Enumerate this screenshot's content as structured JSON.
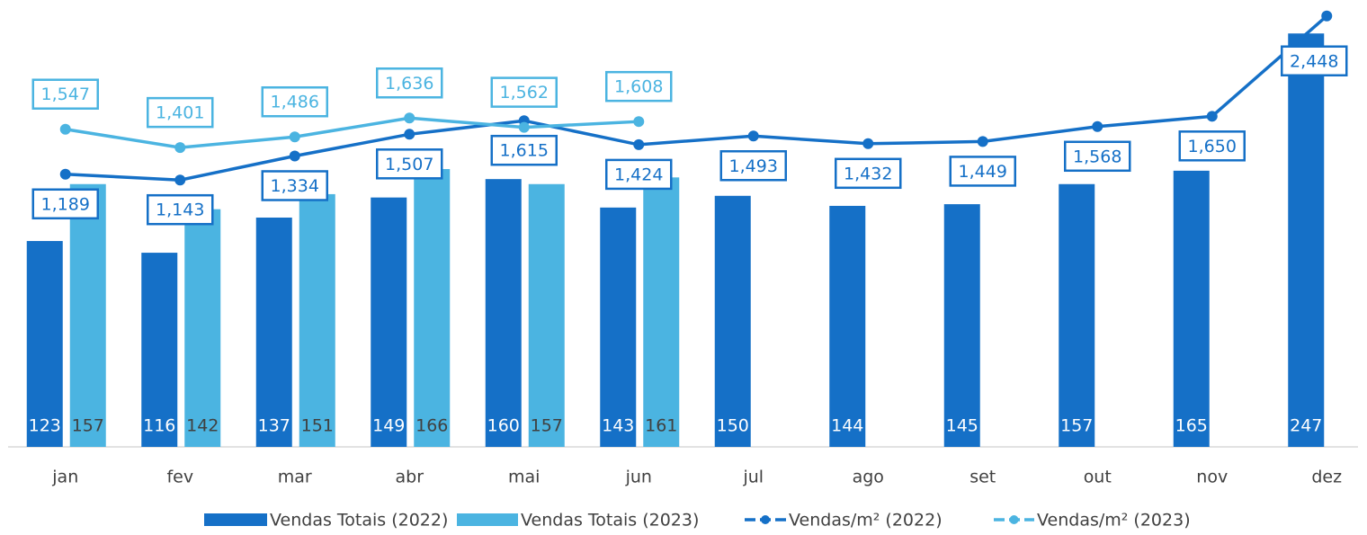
{
  "chart_data": {
    "type": "bar_line",
    "categories": [
      "jan",
      "fev",
      "mar",
      "abr",
      "mai",
      "jun",
      "jul",
      "ago",
      "set",
      "out",
      "nov",
      "dez"
    ],
    "ylim": [
      0,
      267
    ],
    "y2lim": [
      -980,
      2575
    ],
    "series": [
      {
        "name": "Vendas Totais (2022)",
        "type": "bar",
        "color": "#1570c7",
        "values": [
          123,
          116,
          137,
          149,
          160,
          143,
          150,
          144,
          145,
          157,
          165,
          247
        ]
      },
      {
        "name": "Vendas Totais (2023)",
        "type": "bar",
        "color": "#4bb4e1",
        "values": [
          157,
          142,
          151,
          166,
          157,
          161,
          null,
          null,
          null,
          null,
          null,
          null
        ]
      },
      {
        "name": "Vendas/m² (2022)",
        "type": "line",
        "axis": "y2",
        "color": "#1570c7",
        "values": [
          1189,
          1143,
          1334,
          1507,
          1615,
          1424,
          1493,
          1432,
          1449,
          1568,
          1650,
          2448
        ],
        "value_labels": [
          "1,189",
          "1,143",
          "1,334",
          "1,507",
          "1,615",
          "1,424",
          "1,493",
          "1,432",
          "1,449",
          "1,568",
          "1,650",
          "2,448"
        ]
      },
      {
        "name": "Vendas/m² (2023)",
        "type": "line",
        "axis": "y2",
        "color": "#4bb4e1",
        "values": [
          1547,
          1401,
          1486,
          1636,
          1562,
          1608,
          null,
          null,
          null,
          null,
          null,
          null
        ],
        "value_labels": [
          "1,547",
          "1,401",
          "1,486",
          "1,636",
          "1,562",
          "1,608",
          null,
          null,
          null,
          null,
          null,
          null
        ]
      }
    ]
  }
}
